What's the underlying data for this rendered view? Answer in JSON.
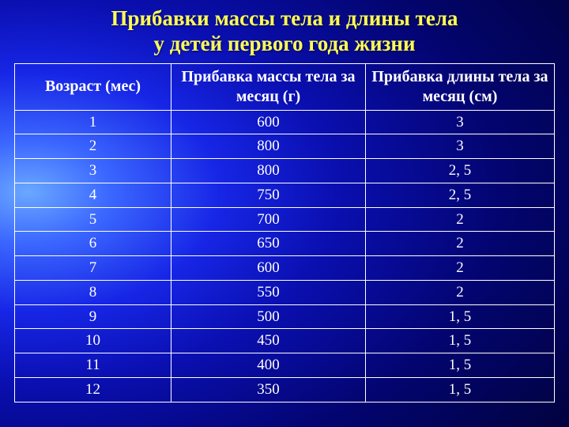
{
  "title_line1": "Прибавки массы тела и длины тела",
  "title_line2": "у детей первого года жизни",
  "headers": {
    "col1": "Возраст (мес)",
    "col2": "Прибавка массы тела за месяц (г)",
    "col3": "Прибавка длины тела за месяц (см)"
  },
  "rows": [
    {
      "age": "1",
      "mass": "600",
      "length": "3"
    },
    {
      "age": "2",
      "mass": "800",
      "length": "3"
    },
    {
      "age": "3",
      "mass": "800",
      "length": "2, 5"
    },
    {
      "age": "4",
      "mass": "750",
      "length": "2, 5"
    },
    {
      "age": "5",
      "mass": "700",
      "length": "2"
    },
    {
      "age": "6",
      "mass": "650",
      "length": "2"
    },
    {
      "age": "7",
      "mass": "600",
      "length": "2"
    },
    {
      "age": "8",
      "mass": "550",
      "length": "2"
    },
    {
      "age": "9",
      "mass": "500",
      "length": "1, 5"
    },
    {
      "age": "10",
      "mass": "450",
      "length": "1, 5"
    },
    {
      "age": "11",
      "mass": "400",
      "length": "1, 5"
    },
    {
      "age": "12",
      "mass": "350",
      "length": "1, 5"
    }
  ],
  "colors": {
    "title": "#fffd55",
    "text": "#ffffff",
    "border": "#ffffff"
  }
}
